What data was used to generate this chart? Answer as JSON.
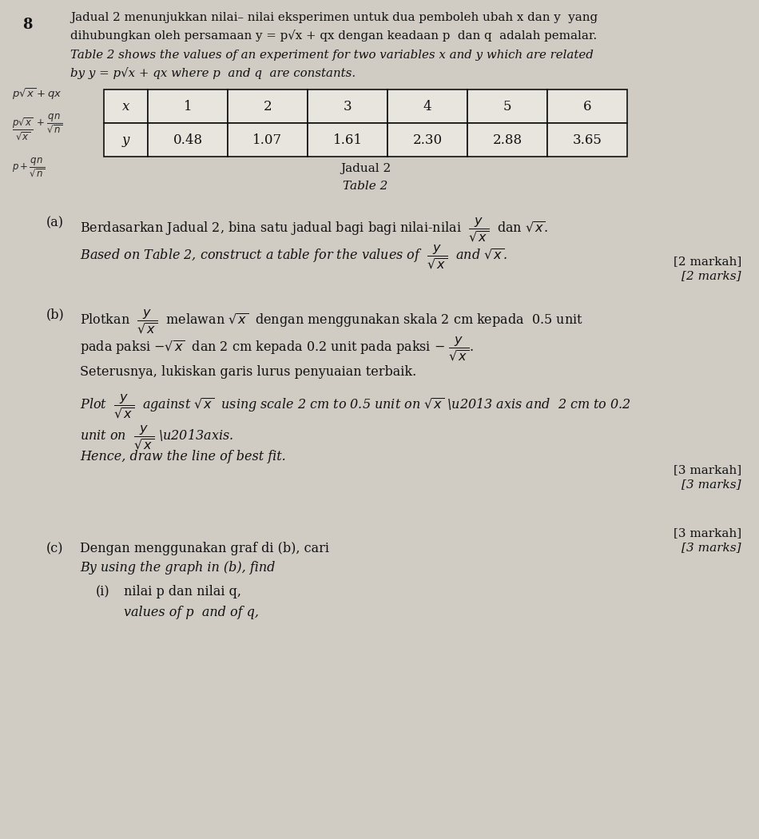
{
  "background_color": "#d0ccc4",
  "page_number": "8",
  "title_line1": "Jadual 2 menunjukkan nilai– nilai eksperimen untuk dua pemboleh ubah x dan y  yang",
  "title_line2": "dihubungkan oleh persamaan y = p√x + qx dengan keadaan p  dan q  adalah pemalar.",
  "title_line3": "Table 2 shows the values of an experiment for two variables x and y which are related",
  "title_line4": "by y = p√x + qx where p  and q  are constants.",
  "table_x_values": [
    "1",
    "2",
    "3",
    "4",
    "5",
    "6"
  ],
  "table_y_values": [
    "0.48",
    "1.07",
    "1.61",
    "2.30",
    "2.88",
    "3.65"
  ],
  "table_caption_line1": "Jadual 2",
  "table_caption_line2": "Table 2",
  "part_a_label": "(a)",
  "part_a_marks_line1": "[2 markah]",
  "part_a_marks_line2": "[2 marks]",
  "part_b_label": "(b)",
  "part_b_marks_line1": "[3 markah]",
  "part_b_marks_line2": "[3 marks]",
  "part_c_label": "(c)",
  "part_c_marks_line1": "[3 markah]",
  "part_c_marks_line2": "[3 marks]",
  "text_color": "#111111",
  "table_border_color": "#111111"
}
